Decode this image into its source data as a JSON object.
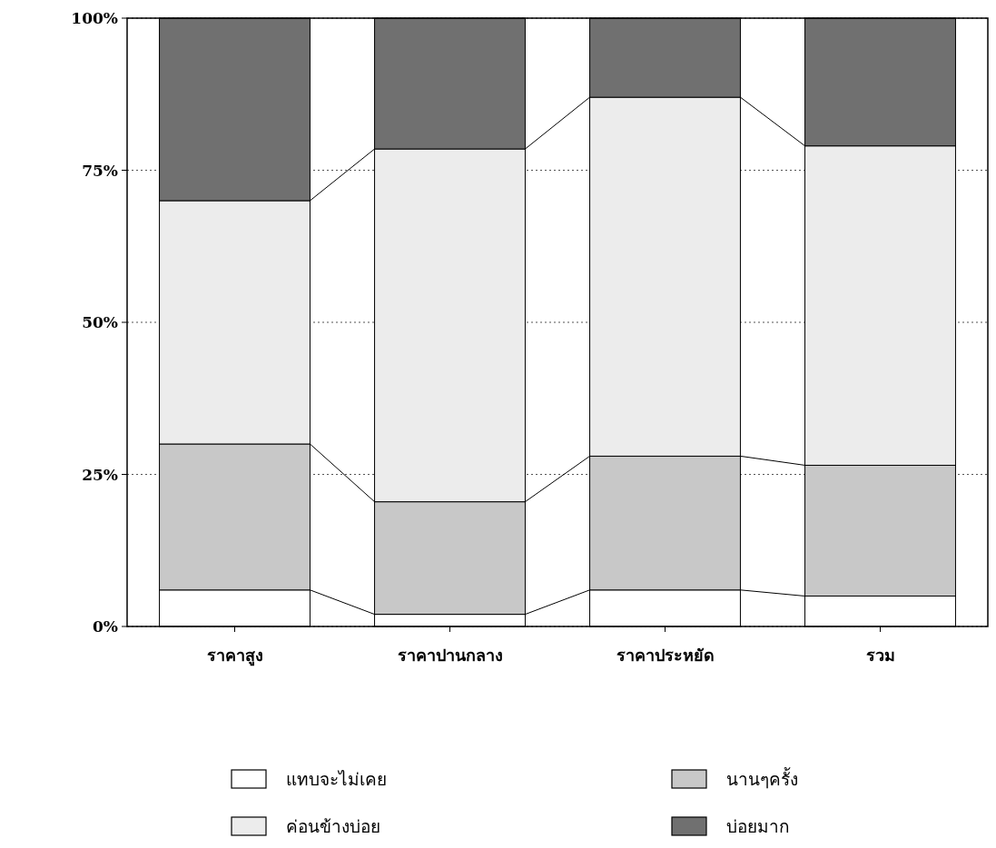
{
  "chart_data": {
    "type": "bar",
    "stacked": true,
    "categories": [
      "ราคาสูง",
      "ราคาปานกลาง",
      "ราคาประหยัด",
      "รวม"
    ],
    "series": [
      {
        "name": "แทบจะไม่เคย",
        "color": "#ffffff",
        "values": [
          6,
          2,
          6,
          5
        ]
      },
      {
        "name": "นานๆครั้ง",
        "color": "#c8c8c8",
        "values": [
          24,
          18.5,
          22,
          21.5
        ]
      },
      {
        "name": "ค่อนข้างบ่อย",
        "color": "#ececec",
        "values": [
          40,
          58,
          59,
          52.5
        ]
      },
      {
        "name": "บ่อยมาก",
        "color": "#707070",
        "values": [
          30,
          21.5,
          13,
          21
        ]
      }
    ],
    "ylim": [
      0,
      100
    ],
    "yticks": [
      {
        "value": 0,
        "label": "0%"
      },
      {
        "value": 25,
        "label": "25%"
      },
      {
        "value": 50,
        "label": "50%"
      },
      {
        "value": 75,
        "label": "75%"
      },
      {
        "value": 100,
        "label": "100%"
      }
    ],
    "grid": "y",
    "legend": "bottom"
  }
}
